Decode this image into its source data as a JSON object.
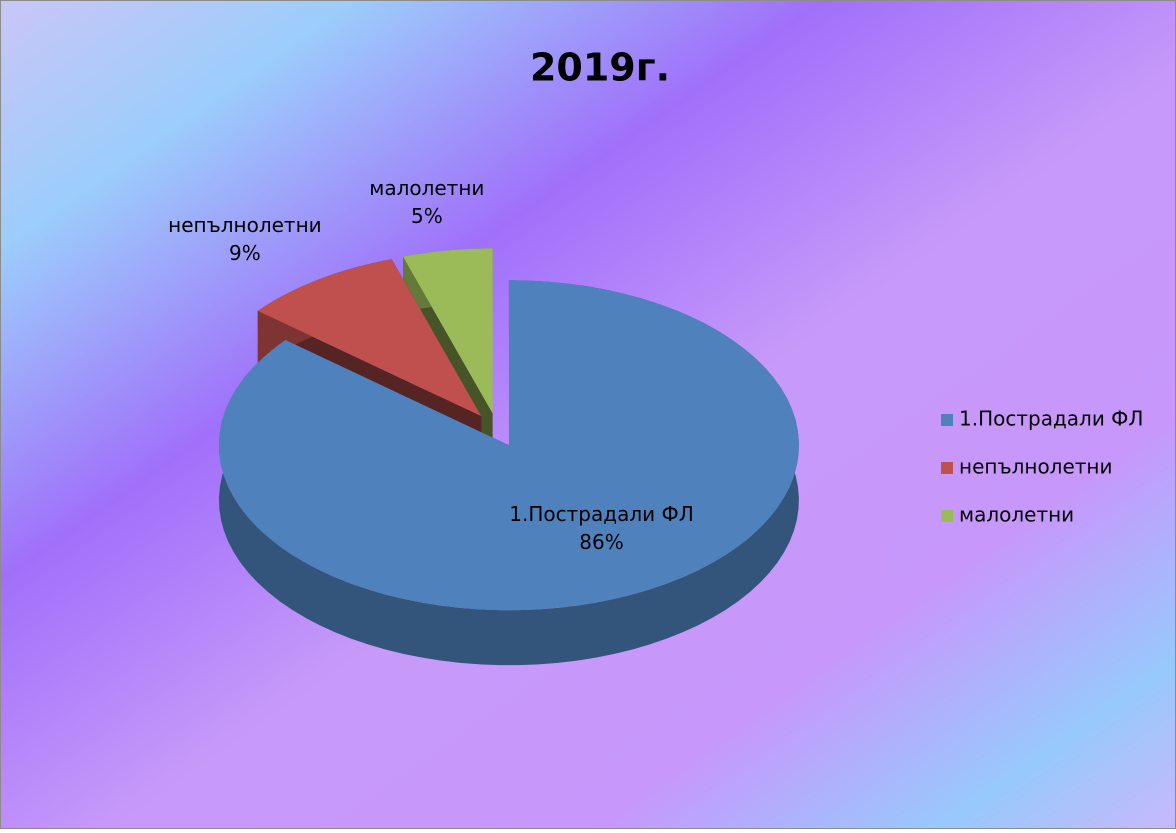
{
  "chart_data": {
    "type": "pie3d",
    "title": "2019г.",
    "categories": [
      "1.Пострадали ФЛ",
      "непълнолетни",
      "малолетни"
    ],
    "values": [
      86,
      9,
      5
    ],
    "value_labels": [
      "86%",
      "9%",
      "5%"
    ],
    "colors": [
      "#4f81bd",
      "#c0504d",
      "#9bbb59"
    ],
    "legend": "right"
  }
}
